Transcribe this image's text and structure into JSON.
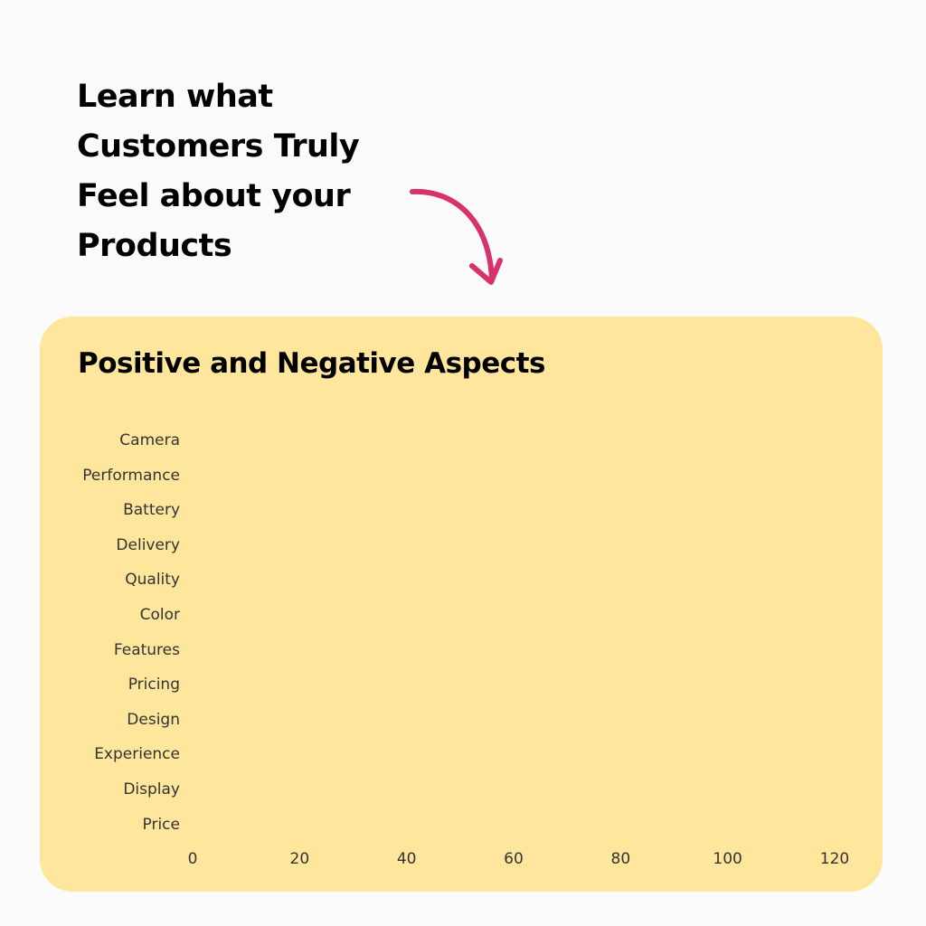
{
  "headline": [
    "Learn what",
    "Customers Truly",
    "Feel about your",
    "Products"
  ],
  "colors": {
    "card_background": "#ffe69d",
    "arrow": "#d6336c",
    "text": "#000000",
    "label_text": "#333333"
  },
  "chart_data": {
    "type": "bar",
    "orientation": "horizontal",
    "title": "Positive and Negative Aspects",
    "categories": [
      "Camera",
      "Performance",
      "Battery",
      "Delivery",
      "Quality",
      "Color",
      "Features",
      "Pricing",
      "Design",
      "Experience",
      "Display",
      "Price"
    ],
    "series": [],
    "xticks": [
      "0",
      "20",
      "40",
      "60",
      "80",
      "100",
      "120"
    ],
    "xlim": [
      0,
      120
    ],
    "xlabel": "",
    "ylabel": "",
    "grid": false
  }
}
